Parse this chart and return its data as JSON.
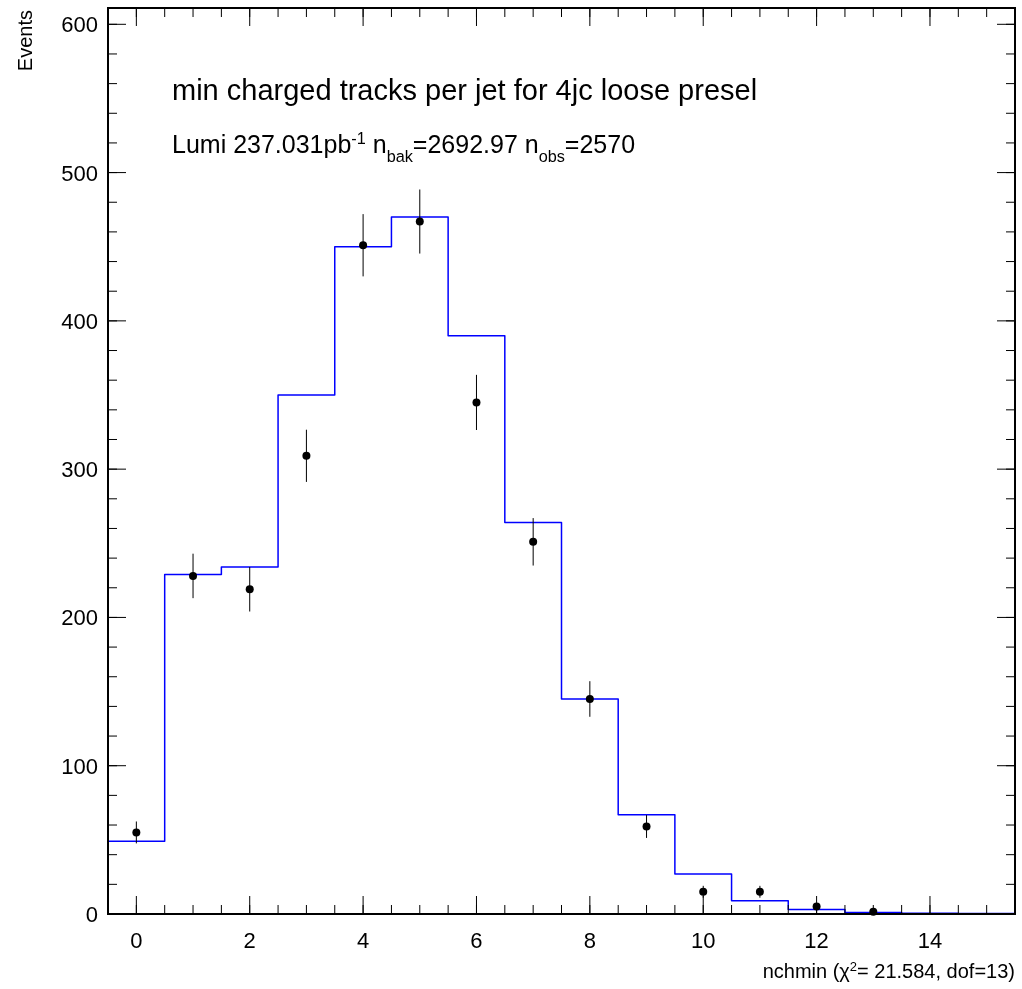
{
  "chart_data": {
    "type": "histogram",
    "title": "min charged tracks per jet for 4jc loose presel",
    "subtitle": "Lumi 237.031pb$^{-1}$ n$_{bak}$=2692.97 n$_{obs}$=2570",
    "xlabel": "nchmin (χ$^{2}$= 21.584, dof=13)",
    "ylabel": "Events",
    "bins": [
      -0.5,
      0.5,
      1.5,
      2.5,
      3.5,
      4.5,
      5.5,
      6.5,
      7.5,
      8.5,
      9.5,
      10.5,
      11.5,
      12.5,
      13.5,
      14.5,
      15.5
    ],
    "series": [
      {
        "color": "#0000ff",
        "values": [
          49,
          229,
          234,
          350,
          450,
          470,
          390,
          264,
          145,
          67,
          27,
          9,
          3,
          1,
          0.5,
          0.3
        ]
      },
      {
        "type": "scatter",
        "color": "#000000",
        "marker": "circle",
        "x": [
          0,
          1,
          2,
          3,
          4,
          5,
          6,
          7,
          8,
          9,
          10,
          11,
          12,
          13
        ],
        "values": [
          55,
          228,
          219,
          309,
          451,
          467,
          345,
          251,
          145,
          59,
          15,
          15,
          5,
          1.5
        ],
        "errors": [
          7.4,
          15,
          15,
          17.6,
          21,
          21.6,
          18.6,
          16,
          12,
          7.7,
          4,
          4,
          2.2,
          1.2
        ]
      }
    ],
    "xlim": [
      -0.5,
      15.5
    ],
    "xticks": [
      0,
      2,
      4,
      6,
      8,
      10,
      12,
      14
    ],
    "ylim": [
      0,
      611
    ],
    "yticks": [
      0,
      100,
      200,
      300,
      400,
      500,
      600
    ],
    "grid": false
  }
}
